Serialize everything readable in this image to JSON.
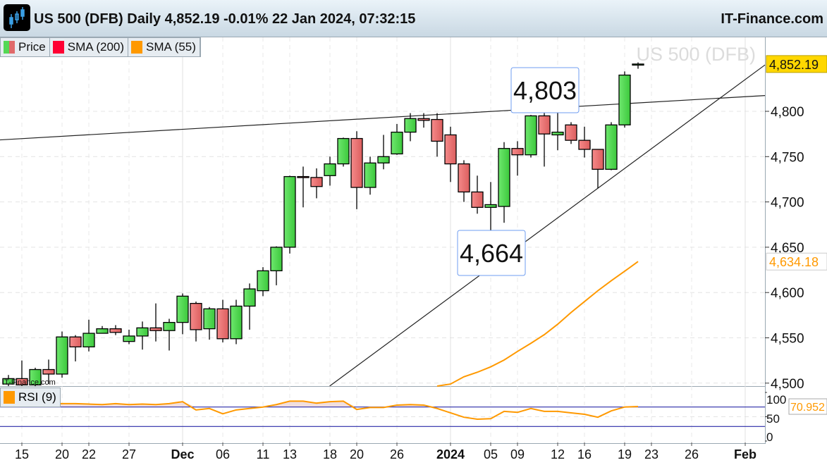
{
  "header": {
    "title": "US 500 (DFB) Daily 4,852.19 -0.01% 22 Jan 2024, 07:32:15",
    "brand": "IT-Finance.com",
    "logo_icon": "candlestick-chart-icon"
  },
  "legend": [
    {
      "label": "Price",
      "colors": [
        "#55d855",
        "#e06a6a"
      ]
    },
    {
      "label": "SMA (200)",
      "color": "#ff0033"
    },
    {
      "label": "SMA (55)",
      "color": "#ff9900"
    }
  ],
  "rsi_legend": {
    "label": "RSI (9)",
    "color": "#ff9900"
  },
  "watermark_small": "IT-Finance.com",
  "instrument_label": "US 500 (DFB)",
  "annotations": [
    {
      "label": "4,803"
    },
    {
      "label": "4,664"
    }
  ],
  "price_tags": {
    "last": "4,852.19",
    "sma55": "4,634.18",
    "rsi": "70.952"
  },
  "colors": {
    "up": "#4cd64c",
    "down": "#ee7070",
    "sma55": "#ff9900",
    "last_bg": "#ffd700",
    "rsi_line": "#2a2aa8"
  },
  "chart_data": {
    "type": "candlestick",
    "days": [
      "2023-11-14",
      "2023-11-15",
      "2023-11-16",
      "2023-11-17",
      "2023-11-20",
      "2023-11-21",
      "2023-11-22",
      "2023-11-23",
      "2023-11-24",
      "2023-11-27",
      "2023-11-28",
      "2023-11-29",
      "2023-11-30",
      "2023-12-01",
      "2023-12-04",
      "2023-12-05",
      "2023-12-06",
      "2023-12-07",
      "2023-12-08",
      "2023-12-11",
      "2023-12-12",
      "2023-12-13",
      "2023-12-14",
      "2023-12-15",
      "2023-12-18",
      "2023-12-19",
      "2023-12-20",
      "2023-12-21",
      "2023-12-22",
      "2023-12-26",
      "2023-12-27",
      "2023-12-28",
      "2023-12-29",
      "2024-01-02",
      "2024-01-03",
      "2024-01-04",
      "2024-01-05",
      "2024-01-08",
      "2024-01-09",
      "2024-01-10",
      "2024-01-11",
      "2024-01-12",
      "2024-01-15",
      "2024-01-16",
      "2024-01-17",
      "2024-01-18",
      "2024-01-19",
      "2024-01-22",
      "2024-01-23",
      "2024-01-24",
      "2024-01-25",
      "2024-01-26",
      "2024-01-29",
      "2024-01-30",
      "2024-01-31",
      "2024-02-01",
      "2024-02-02"
    ],
    "ohlc": [
      [
        4499,
        4509,
        4496,
        4505
      ],
      [
        4505,
        4525,
        4496,
        4498
      ],
      [
        4498,
        4517,
        4495,
        4515
      ],
      [
        4515,
        4526,
        4499,
        4510
      ],
      [
        4510,
        4557,
        4506,
        4551
      ],
      [
        4551,
        4553,
        4524,
        4540
      ],
      [
        4540,
        4570,
        4535,
        4555
      ],
      [
        4555,
        4563,
        4555,
        4560
      ],
      [
        4560,
        4564,
        4553,
        4556
      ],
      [
        4546,
        4559,
        4543,
        4552
      ],
      [
        4552,
        4568,
        4537,
        4561
      ],
      [
        4561,
        4588,
        4546,
        4558
      ],
      [
        4558,
        4571,
        4536,
        4567
      ],
      [
        4567,
        4599,
        4554,
        4596
      ],
      [
        4588,
        4590,
        4546,
        4559
      ],
      [
        4560,
        4584,
        4548,
        4582
      ],
      [
        4582,
        4592,
        4545,
        4549
      ],
      [
        4549,
        4592,
        4543,
        4585
      ],
      [
        4585,
        4610,
        4559,
        4604
      ],
      [
        4602,
        4628,
        4596,
        4624
      ],
      [
        4624,
        4651,
        4608,
        4650
      ],
      [
        4650,
        4729,
        4643,
        4728
      ],
      [
        4728,
        4739,
        4694,
        4727
      ],
      [
        4727,
        4737,
        4704,
        4717
      ],
      [
        4729,
        4750,
        4718,
        4742
      ],
      [
        4742,
        4771,
        4739,
        4770
      ],
      [
        4770,
        4778,
        4692,
        4716
      ],
      [
        4716,
        4750,
        4708,
        4743
      ],
      [
        4743,
        4774,
        4736,
        4750
      ],
      [
        4753,
        4786,
        4752,
        4777
      ],
      [
        4777,
        4798,
        4767,
        4792
      ],
      [
        4792,
        4798,
        4782,
        4790
      ],
      [
        4791,
        4798,
        4750,
        4767
      ],
      [
        4774,
        4783,
        4722,
        4742
      ],
      [
        4742,
        4746,
        4700,
        4711
      ],
      [
        4711,
        4729,
        4687,
        4694
      ],
      [
        4694,
        4722,
        4664,
        4697
      ],
      [
        4695,
        4766,
        4677,
        4759
      ],
      [
        4759,
        4767,
        4729,
        4752
      ],
      [
        4752,
        4796,
        4749,
        4795
      ],
      [
        4795,
        4804,
        4739,
        4775
      ],
      [
        4774,
        4803,
        4757,
        4777
      ],
      [
        4785,
        4788,
        4764,
        4768
      ],
      [
        4768,
        4783,
        4749,
        4758
      ],
      [
        4758,
        4758,
        4715,
        4736
      ],
      [
        4736,
        4788,
        4735,
        4785
      ],
      [
        4785,
        4844,
        4782,
        4840
      ],
      [
        4852,
        4854,
        4847,
        4852.19
      ]
    ],
    "sma55": {
      "start": "2023-12-29",
      "values": [
        4494,
        4499,
        4507,
        4512,
        4518,
        4525.5,
        4535,
        4544,
        4553.5,
        4565,
        4578,
        4590,
        4602,
        4613,
        4623.5,
        4634.18
      ]
    },
    "trendlines": [
      {
        "from": [
          "2023-11-14",
          4769
        ],
        "to": [
          "2024-02-02",
          4817
        ]
      },
      {
        "from": [
          "2023-12-18",
          4497
        ],
        "to": [
          "2024-02-02",
          4846
        ]
      }
    ],
    "annotations": [
      {
        "date": "2024-01-11",
        "value": 4803,
        "label": "4,803"
      },
      {
        "date": "2024-01-05",
        "value": 4664,
        "label": "4,664"
      }
    ],
    "yticks": [
      "4,500",
      "4,550",
      "4,600",
      "4,650",
      "4,700",
      "4,750",
      "4,800"
    ],
    "ytick_values": [
      4500,
      4550,
      4600,
      4650,
      4700,
      4750,
      4800
    ],
    "ylim": [
      4490,
      4880
    ],
    "xticks": [
      {
        "label": "15",
        "date": "2023-11-15"
      },
      {
        "label": "20",
        "date": "2023-11-20"
      },
      {
        "label": "22",
        "date": "2023-11-22"
      },
      {
        "label": "27",
        "date": "2023-11-27"
      },
      {
        "label": "Dec",
        "date": "2023-12-01",
        "bold": true
      },
      {
        "label": "06",
        "date": "2023-12-06"
      },
      {
        "label": "11",
        "date": "2023-12-11"
      },
      {
        "label": "13",
        "date": "2023-12-13"
      },
      {
        "label": "18",
        "date": "2023-12-18"
      },
      {
        "label": "20",
        "date": "2023-12-20"
      },
      {
        "label": "26",
        "date": "2023-12-26"
      },
      {
        "label": "2024",
        "date": "2024-01-02",
        "bold": true
      },
      {
        "label": "05",
        "date": "2024-01-05"
      },
      {
        "label": "09",
        "date": "2024-01-09"
      },
      {
        "label": "12",
        "date": "2024-01-12"
      },
      {
        "label": "16",
        "date": "2024-01-16"
      },
      {
        "label": "19",
        "date": "2024-01-19"
      },
      {
        "label": "23",
        "date": "2024-01-23"
      },
      {
        "label": "26",
        "date": "2024-01-26"
      },
      {
        "label": "Feb",
        "date": "2024-02-01",
        "bold": true
      }
    ],
    "rsi": {
      "period": 9,
      "values": [
        75,
        77,
        75,
        76,
        77,
        77,
        76,
        75,
        77,
        75,
        76,
        75,
        77,
        81,
        64,
        67,
        56,
        64,
        67,
        70,
        75,
        82,
        82,
        78,
        81,
        82,
        65,
        69,
        69,
        74,
        75,
        74,
        67,
        58,
        49,
        45,
        46,
        61,
        59,
        67,
        61,
        61,
        58,
        55,
        49,
        62,
        70,
        70.952
      ],
      "levels": [
        70,
        30
      ],
      "yticks": [
        "100",
        "50",
        "0"
      ],
      "ytick_values": [
        100,
        50,
        0
      ]
    }
  }
}
